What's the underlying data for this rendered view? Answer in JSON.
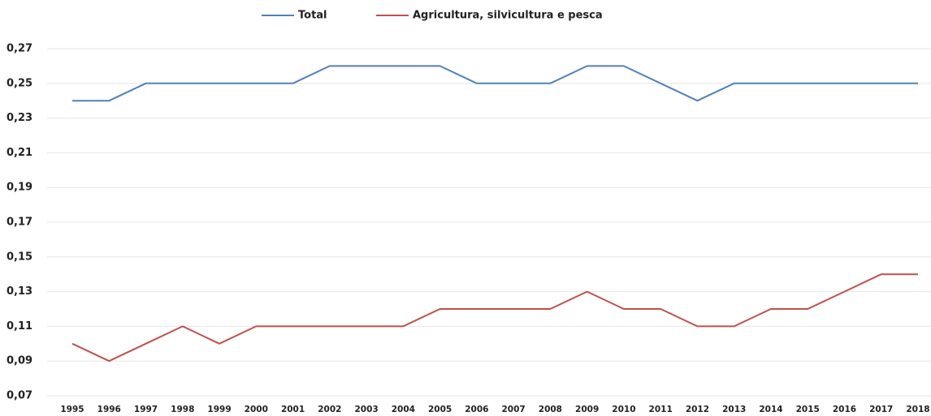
{
  "chart_data": {
    "type": "line",
    "categories": [
      "1995",
      "1996",
      "1997",
      "1998",
      "1999",
      "2000",
      "2001",
      "2002",
      "2003",
      "2004",
      "2005",
      "2006",
      "2007",
      "2008",
      "2009",
      "2010",
      "2011",
      "2012",
      "2013",
      "2014",
      "2015",
      "2016",
      "2017",
      "2018"
    ],
    "series": [
      {
        "name": "Total",
        "color": "#4f81bd",
        "values": [
          0.24,
          0.24,
          0.25,
          0.25,
          0.25,
          0.25,
          0.25,
          0.26,
          0.26,
          0.26,
          0.26,
          0.25,
          0.25,
          0.25,
          0.26,
          0.26,
          0.25,
          0.24,
          0.25,
          0.25,
          0.25,
          0.25,
          0.25,
          0.25
        ]
      },
      {
        "name": "Agricultura, silvicultura e pesca",
        "color": "#c0504d",
        "values": [
          0.1,
          0.09,
          0.1,
          0.11,
          0.1,
          0.11,
          0.11,
          0.11,
          0.11,
          0.11,
          0.12,
          0.12,
          0.12,
          0.12,
          0.13,
          0.12,
          0.12,
          0.11,
          0.11,
          0.12,
          0.12,
          0.13,
          0.14,
          0.14
        ]
      }
    ],
    "ylim": [
      0.07,
      0.27
    ],
    "yticks": [
      {
        "value": 0.07,
        "label": "0,07"
      },
      {
        "value": 0.09,
        "label": "0,09"
      },
      {
        "value": 0.11,
        "label": "0,11"
      },
      {
        "value": 0.13,
        "label": "0,13"
      },
      {
        "value": 0.15,
        "label": "0,15"
      },
      {
        "value": 0.17,
        "label": "0,17"
      },
      {
        "value": 0.19,
        "label": "0,19"
      },
      {
        "value": 0.21,
        "label": "0,21"
      },
      {
        "value": 0.23,
        "label": "0,23"
      },
      {
        "value": 0.25,
        "label": "0,25"
      },
      {
        "value": 0.27,
        "label": "0,27"
      }
    ],
    "grid": true
  }
}
